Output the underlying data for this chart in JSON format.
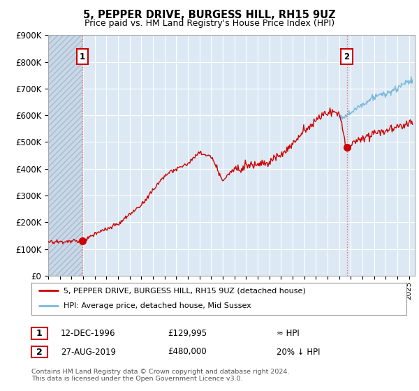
{
  "title": "5, PEPPER DRIVE, BURGESS HILL, RH15 9UZ",
  "subtitle": "Price paid vs. HM Land Registry's House Price Index (HPI)",
  "ylim": [
    0,
    900000
  ],
  "yticks": [
    0,
    100000,
    200000,
    300000,
    400000,
    500000,
    600000,
    700000,
    800000,
    900000
  ],
  "ytick_labels": [
    "£0",
    "£100K",
    "£200K",
    "£300K",
    "£400K",
    "£500K",
    "£600K",
    "£700K",
    "£800K",
    "£900K"
  ],
  "hpi_color": "#7ab8d9",
  "price_color": "#cc0000",
  "marker_color": "#cc0000",
  "dashed_line_color": "#e87070",
  "background_color": "#ffffff",
  "plot_bg_color": "#dce9f5",
  "grid_color": "#ffffff",
  "hatch_color": "#c8d8e8",
  "sale1_year": 1996.95,
  "sale1_value": 129995,
  "sale2_year": 2019.65,
  "sale2_value": 480000,
  "legend_line1": "5, PEPPER DRIVE, BURGESS HILL, RH15 9UZ (detached house)",
  "legend_line2": "HPI: Average price, detached house, Mid Sussex",
  "note1_label": "1",
  "note1_date": "12-DEC-1996",
  "note1_price": "£129,995",
  "note1_rel": "≈ HPI",
  "note2_label": "2",
  "note2_date": "27-AUG-2019",
  "note2_price": "£480,000",
  "note2_rel": "20% ↓ HPI",
  "footer": "Contains HM Land Registry data © Crown copyright and database right 2024.\nThis data is licensed under the Open Government Licence v3.0.",
  "xmin": 1994,
  "xmax": 2025.5
}
